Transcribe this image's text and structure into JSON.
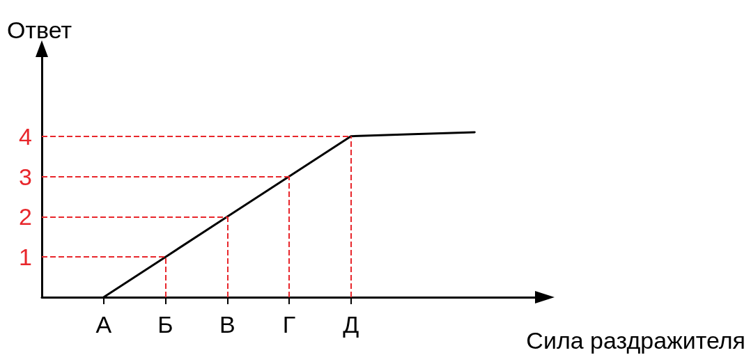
{
  "chart_data": {
    "type": "line",
    "xlabel": "Сила раздражителя",
    "ylabel": "Ответ",
    "categories": [
      null,
      "А",
      "Б",
      "В",
      "Г",
      "Д",
      null,
      null,
      null
    ],
    "series": [
      {
        "color": "#000000",
        "values": [
          null,
          0,
          1,
          2,
          3,
          4,
          4.05,
          4.1,
          null
        ]
      }
    ],
    "ylim": [
      0,
      6
    ],
    "yticks": [
      1,
      2,
      3,
      4
    ],
    "ref_lines": [
      {
        "axis": "y",
        "value": 1,
        "label": null,
        "color": "#e8262b",
        "line_style": "dashed"
      },
      {
        "axis": "y",
        "value": 2,
        "label": null,
        "color": "#e8262b",
        "line_style": "dashed"
      },
      {
        "axis": "y",
        "value": 3,
        "label": null,
        "color": "#e8262b",
        "line_style": "dashed"
      },
      {
        "axis": "y",
        "value": 4,
        "label": null,
        "color": "#e8262b",
        "line_style": "dashed"
      },
      {
        "axis": "x",
        "value": "Б",
        "label": null,
        "color": "#e8262b",
        "line_style": "dashed"
      },
      {
        "axis": "x",
        "value": "В",
        "label": null,
        "color": "#e8262b",
        "line_style": "dashed"
      },
      {
        "axis": "x",
        "value": "Г",
        "label": null,
        "color": "#e8262b",
        "line_style": "dashed"
      },
      {
        "axis": "x",
        "value": "Д",
        "label": null,
        "color": "#e8262b",
        "line_style": "dashed"
      }
    ],
    "marker": "none",
    "line_style": "solid"
  }
}
